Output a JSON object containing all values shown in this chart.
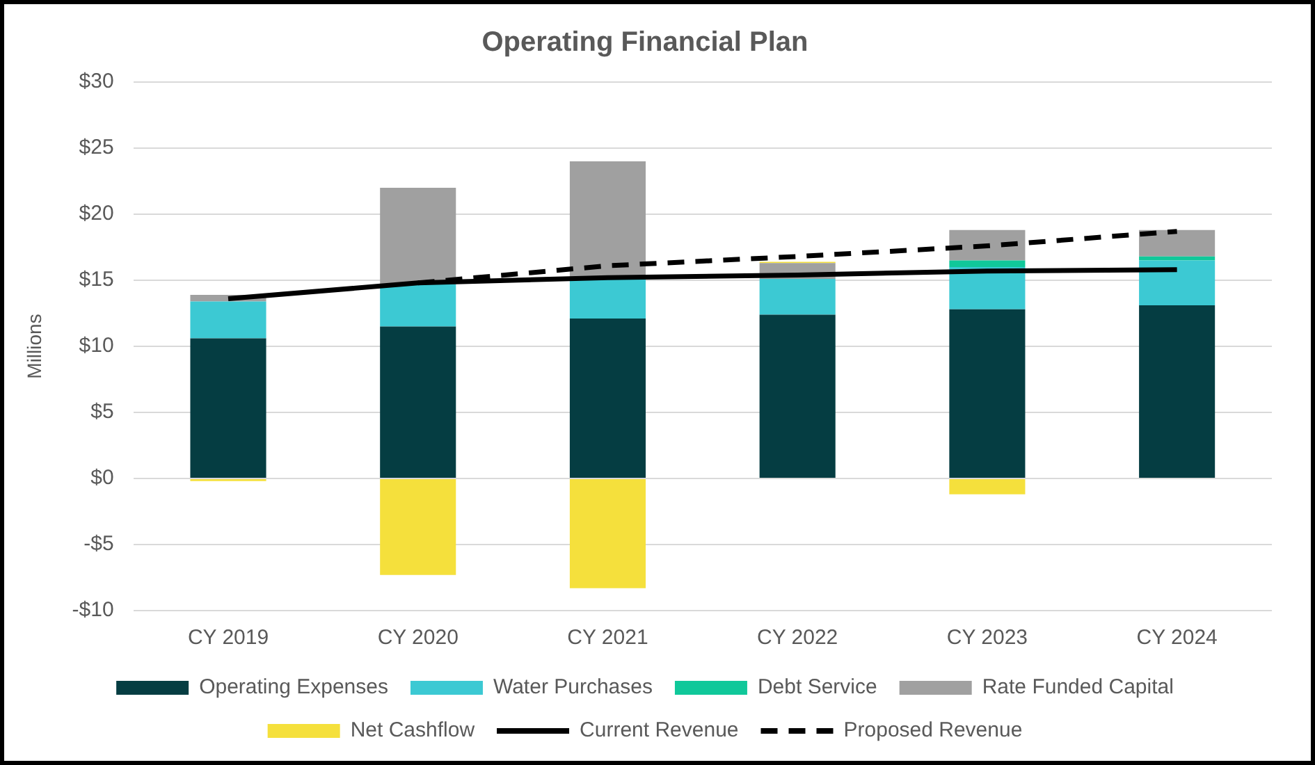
{
  "chart_data": {
    "type": "bar",
    "title": "Operating Financial Plan",
    "ylabel": "Millions",
    "stacked": true,
    "categories": [
      "CY 2019",
      "CY 2020",
      "CY 2021",
      "CY 2022",
      "CY 2023",
      "CY 2024"
    ],
    "series": [
      {
        "name": "Operating Expenses",
        "color": "#053d42",
        "values": [
          10.6,
          11.5,
          12.1,
          12.4,
          12.8,
          13.1
        ]
      },
      {
        "name": "Water Purchases",
        "color": "#3cc9d3",
        "values": [
          2.8,
          3.2,
          3.0,
          2.7,
          3.2,
          3.4
        ]
      },
      {
        "name": "Debt Service",
        "color": "#10c89a",
        "values": [
          0,
          0,
          0,
          null,
          0.5,
          0.3
        ]
      },
      {
        "name": "Rate Funded Capital",
        "color": "#a0a0a0",
        "values": [
          0.5,
          7.3,
          8.9,
          1.2,
          2.3,
          2.0
        ]
      },
      {
        "name": "Net Cashflow",
        "color": "#f5e03c",
        "values": [
          -0.2,
          -7.3,
          -8.3,
          0.1,
          -1.2,
          0
        ]
      },
      {
        "name": "Current Revenue",
        "type": "line",
        "color": "#000000",
        "line_style": "solid",
        "values": [
          13.6,
          14.8,
          15.2,
          15.4,
          15.7,
          15.8
        ]
      },
      {
        "name": "Proposed Revenue",
        "type": "line",
        "color": "#000000",
        "line_style": "dashed",
        "values": [
          null,
          14.8,
          16.1,
          16.8,
          17.6,
          18.7
        ]
      }
    ],
    "ylim": [
      -10,
      30
    ],
    "yticks": [
      {
        "value": -10,
        "label": "-$10"
      },
      {
        "value": -5,
        "label": "-$5"
      },
      {
        "value": 0,
        "label": "$0"
      },
      {
        "value": 5,
        "label": "$5"
      },
      {
        "value": 10,
        "label": "$10"
      },
      {
        "value": 15,
        "label": "$15"
      },
      {
        "value": 20,
        "label": "$20"
      },
      {
        "value": 25,
        "label": "$25"
      },
      {
        "value": 30,
        "label": "$30"
      }
    ],
    "grid": "y",
    "legend": "bottom",
    "marker": "none"
  }
}
